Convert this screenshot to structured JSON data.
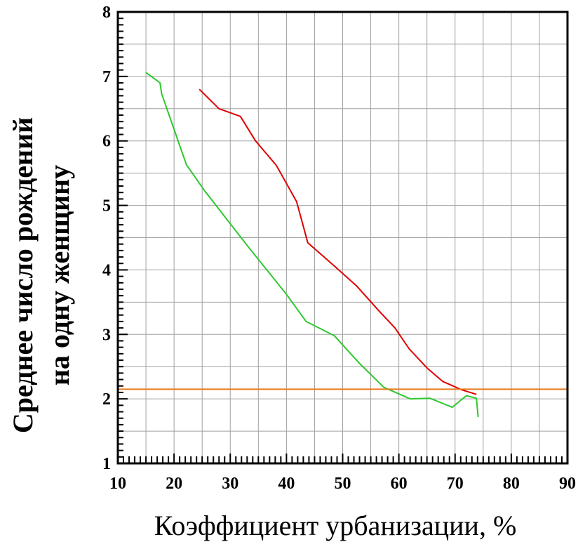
{
  "chart_data": {
    "type": "line",
    "title": "",
    "xlabel": "Коэффициент урбанизации, %",
    "ylabel_line1": "Среднее число рождений",
    "ylabel_line2": "на одну женщину",
    "xlim": [
      10,
      90
    ],
    "ylim": [
      1,
      8
    ],
    "x_ticks": [
      10,
      20,
      30,
      40,
      50,
      60,
      70,
      80,
      90
    ],
    "y_ticks": [
      1,
      2,
      3,
      4,
      5,
      6,
      7,
      8
    ],
    "x_tick_labels": [
      "10",
      "20",
      "30",
      "40",
      "50",
      "60",
      "70",
      "80",
      "90"
    ],
    "y_tick_labels": [
      "1",
      "2",
      "3",
      "4",
      "5",
      "6",
      "7",
      "8"
    ],
    "grid": true,
    "series": [
      {
        "name": "red-series",
        "color": "#e00000",
        "points": [
          [
            24.5,
            6.8
          ],
          [
            28,
            6.5
          ],
          [
            31.8,
            6.38
          ],
          [
            34.5,
            6.0
          ],
          [
            38.2,
            5.62
          ],
          [
            41.8,
            5.06
          ],
          [
            43.8,
            4.42
          ],
          [
            48,
            4.1
          ],
          [
            52.5,
            3.75
          ],
          [
            56.3,
            3.38
          ],
          [
            59.3,
            3.1
          ],
          [
            61.8,
            2.78
          ],
          [
            65,
            2.48
          ],
          [
            67.8,
            2.27
          ],
          [
            71.2,
            2.14
          ],
          [
            73.8,
            2.07
          ]
        ]
      },
      {
        "name": "green-series",
        "color": "#2ec82e",
        "points": [
          [
            15,
            7.06
          ],
          [
            17.5,
            6.9
          ],
          [
            17.8,
            6.73
          ],
          [
            22.2,
            5.63
          ],
          [
            25.5,
            5.22
          ],
          [
            33,
            4.38
          ],
          [
            40,
            3.62
          ],
          [
            43.5,
            3.2
          ],
          [
            48.5,
            2.98
          ],
          [
            53,
            2.55
          ],
          [
            57.3,
            2.18
          ],
          [
            62,
            2.0
          ],
          [
            65.5,
            2.01
          ],
          [
            69.5,
            1.87
          ],
          [
            72,
            2.05
          ],
          [
            73.8,
            2.01
          ],
          [
            74.1,
            1.72
          ]
        ]
      },
      {
        "name": "replacement-line",
        "color": "#e87a1e",
        "points": [
          [
            10,
            2.15
          ],
          [
            90,
            2.15
          ]
        ]
      }
    ]
  }
}
